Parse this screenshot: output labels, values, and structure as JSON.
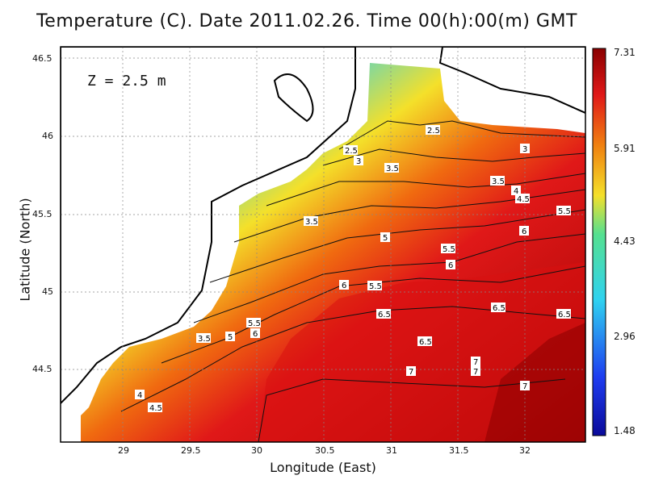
{
  "title": "Temperature (C). Date 2011.02.26. Time 00(h):00(m) GMT",
  "depth_label": "Z = 2.5 m",
  "xlabel": "Longitude (East)",
  "ylabel": "Latitude (North)",
  "x_ticks": [
    "29",
    "29.5",
    "30",
    "30.5",
    "31",
    "31.5",
    "32"
  ],
  "y_ticks": [
    "46.5",
    "46",
    "45.5",
    "45",
    "44.5"
  ],
  "colorbar_ticks": [
    "7.31",
    "5.91",
    "4.43",
    "2.96",
    "1.48"
  ],
  "colors": {
    "cold": "#1a2fd6",
    "cyan": "#2fd2f0",
    "yellow": "#f4e02a",
    "red": "#e01818",
    "darkred": "#8a0000"
  },
  "chart_data": {
    "type": "heatmap",
    "title": "Temperature (C). Date 2011.02.26. Time 00(h):00(m) GMT",
    "xlabel": "Longitude (East)",
    "ylabel": "Latitude (North)",
    "xlim": [
      28.55,
      32.5
    ],
    "ylim": [
      44.05,
      46.55
    ],
    "colorbar_range": [
      1.48,
      7.31
    ],
    "colorbar_ticks": [
      1.48,
      2.96,
      4.43,
      5.91,
      7.31
    ],
    "contour_labels": [
      "2.5",
      "3",
      "3.5",
      "4",
      "4.5",
      "5",
      "5.5",
      "6",
      "6.5",
      "7"
    ],
    "grid": true
  }
}
